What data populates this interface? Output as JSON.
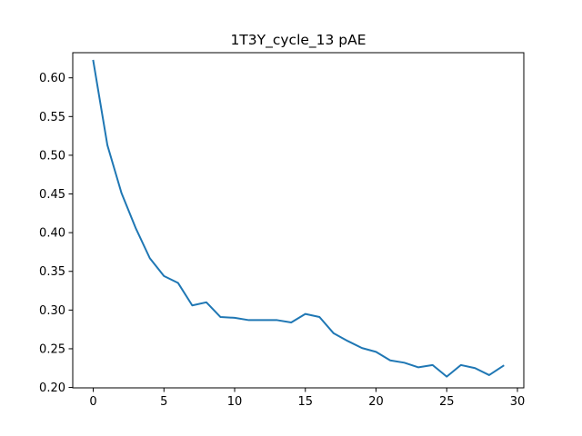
{
  "chart_data": {
    "type": "line",
    "title": "1T3Y_cycle_13 pAE",
    "xlabel": "",
    "ylabel": "",
    "xlim": [
      -1.45,
      30.45
    ],
    "ylim": [
      0.1995,
      0.6325
    ],
    "x_ticks": [
      0,
      5,
      10,
      15,
      20,
      25,
      30
    ],
    "x_tick_labels": [
      "0",
      "5",
      "10",
      "15",
      "20",
      "25",
      "30"
    ],
    "y_ticks": [
      0.2,
      0.25,
      0.3,
      0.35,
      0.4,
      0.45,
      0.5,
      0.55,
      0.6
    ],
    "y_tick_labels": [
      "0.20",
      "0.25",
      "0.30",
      "0.35",
      "0.40",
      "0.45",
      "0.50",
      "0.55",
      "0.60"
    ],
    "grid": false,
    "line_color": "#1f77b4",
    "series": [
      {
        "x": [
          0,
          1,
          2,
          3,
          4,
          5,
          6,
          7,
          8,
          9,
          10,
          11,
          12,
          13,
          14,
          15,
          16,
          17,
          18,
          19,
          20,
          21,
          22,
          23,
          24,
          25,
          26,
          27,
          28,
          29
        ],
        "values": [
          0.622,
          0.513,
          0.451,
          0.406,
          0.367,
          0.344,
          0.335,
          0.306,
          0.31,
          0.291,
          0.29,
          0.287,
          0.287,
          0.287,
          0.284,
          0.295,
          0.291,
          0.27,
          0.26,
          0.251,
          0.246,
          0.235,
          0.232,
          0.226,
          0.229,
          0.214,
          0.229,
          0.225,
          0.216,
          0.228
        ]
      }
    ]
  }
}
